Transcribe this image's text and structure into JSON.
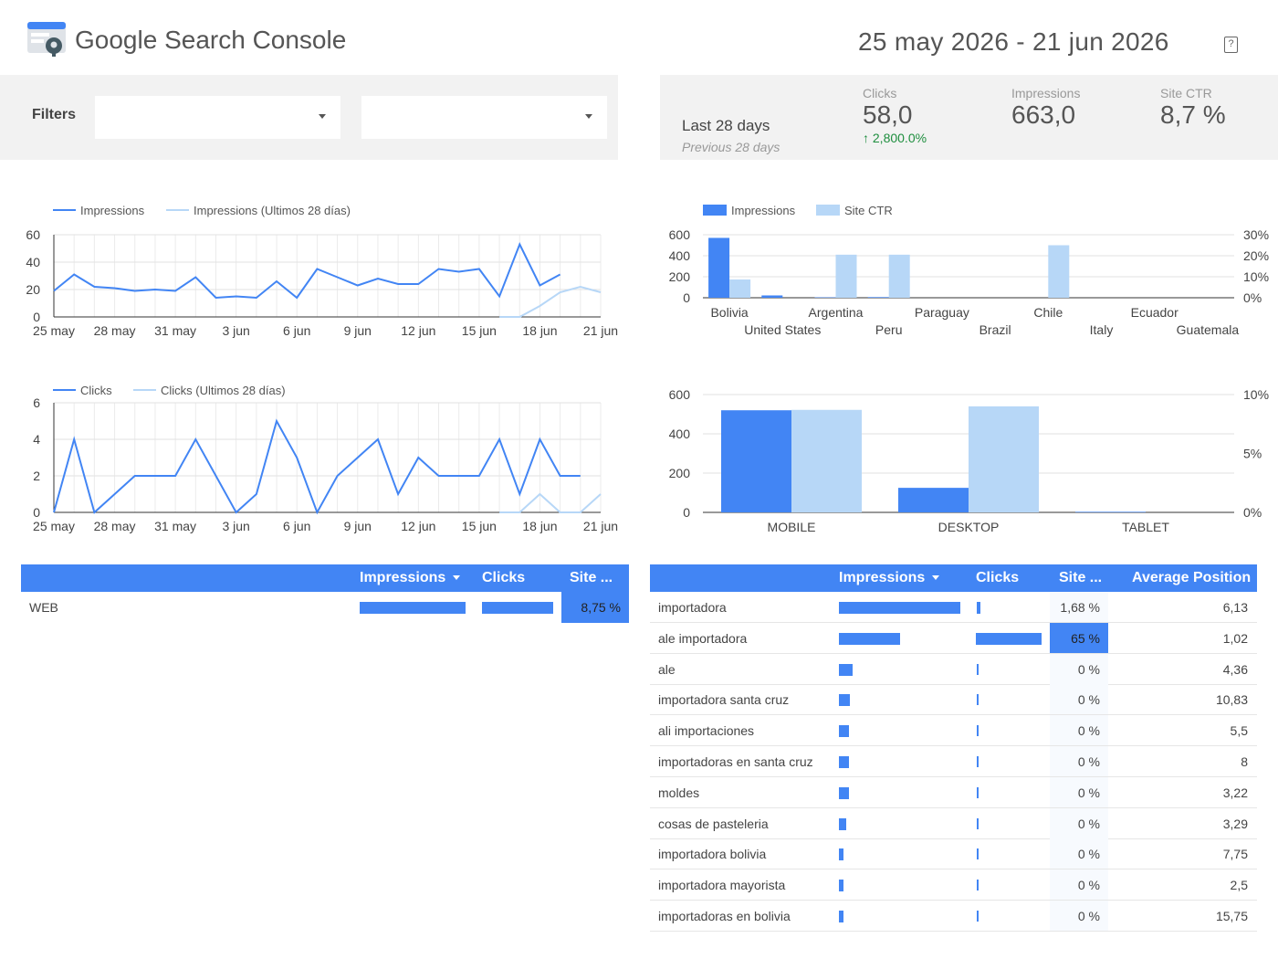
{
  "header": {
    "title": "Google Search Console",
    "date_range": "25 may 2026 - 21 jun 2026",
    "help_glyph": "?"
  },
  "filters": {
    "label": "Filters",
    "dropdown_1_value": "",
    "dropdown_2_value": ""
  },
  "scorecard": {
    "period": "Last 28 days",
    "previous_period": "Previous 28 days",
    "clicks": {
      "label": "Clicks",
      "value": "58,0",
      "delta": "2,800.0%",
      "delta_icon": "arrow-up-icon"
    },
    "impressions": {
      "label": "Impressions",
      "value": "663,0"
    },
    "ctr": {
      "label": "Site CTR",
      "value": "8,7 %"
    }
  },
  "colors": {
    "primary": "#4285f4",
    "secondary": "#b7d7f7",
    "positive": "#1e8e3e"
  },
  "chart_data": [
    {
      "type": "line",
      "legend": [
        "Impressions",
        "Impressions (Ultimos 28 días)"
      ],
      "x_ticks": [
        "25 may",
        "28 may",
        "31 may",
        "3 jun",
        "6 jun",
        "9 jun",
        "12 jun",
        "15 jun",
        "18 jun",
        "21 jun"
      ],
      "ylim": [
        0,
        60
      ],
      "y_ticks": [
        0,
        20,
        40,
        60
      ],
      "series": [
        {
          "name": "Impressions",
          "values": [
            19,
            31,
            22,
            21,
            19,
            20,
            19,
            29,
            14,
            15,
            14,
            26,
            14,
            35,
            29,
            23,
            28,
            24,
            24,
            35,
            33,
            35,
            15,
            53,
            23,
            31,
            null,
            null
          ]
        },
        {
          "name": "Impressions (Ultimos 28 días)",
          "values": [
            null,
            null,
            null,
            null,
            null,
            null,
            null,
            null,
            null,
            null,
            null,
            null,
            null,
            null,
            null,
            null,
            null,
            null,
            null,
            null,
            null,
            null,
            0,
            0,
            8,
            18,
            22,
            18
          ]
        }
      ]
    },
    {
      "type": "bar",
      "legend": [
        "Impressions",
        "Site CTR"
      ],
      "categories": [
        "Bolivia",
        "United States",
        "Argentina",
        "Peru",
        "Paraguay",
        "Brazil",
        "Chile",
        "Italy",
        "Ecuador",
        "Guatemala"
      ],
      "series": [
        {
          "name": "Impressions",
          "values": [
            570,
            22,
            4,
            6,
            0,
            0,
            0,
            0,
            0,
            0
          ]
        },
        {
          "name": "Site CTR",
          "values": [
            8.7,
            0,
            20.5,
            20.5,
            0,
            0,
            25.0,
            0,
            0,
            0
          ]
        }
      ],
      "ylim": [
        0,
        600
      ],
      "y_ticks": [
        0,
        200,
        400,
        600
      ],
      "y2lim": [
        0,
        30
      ],
      "y2_ticks": [
        "0%",
        "10%",
        "20%",
        "30%"
      ]
    },
    {
      "type": "line",
      "legend": [
        "Clicks",
        "Clicks (Ultimos 28 días)"
      ],
      "x_ticks": [
        "25 may",
        "28 may",
        "31 may",
        "3 jun",
        "6 jun",
        "9 jun",
        "12 jun",
        "15 jun",
        "18 jun",
        "21 jun"
      ],
      "ylim": [
        0,
        6
      ],
      "y_ticks": [
        0,
        2,
        4,
        6
      ],
      "series": [
        {
          "name": "Clicks",
          "values": [
            0,
            4,
            0,
            1,
            2,
            2,
            2,
            4,
            2,
            0,
            1,
            5,
            3,
            0,
            2,
            3,
            4,
            1,
            3,
            2,
            2,
            2,
            4,
            1,
            4,
            2,
            2,
            null
          ]
        },
        {
          "name": "Clicks (Ultimos 28 días)",
          "values": [
            null,
            null,
            null,
            null,
            null,
            null,
            null,
            null,
            null,
            null,
            null,
            null,
            null,
            null,
            null,
            null,
            null,
            null,
            null,
            null,
            null,
            null,
            0,
            0,
            1,
            0,
            0,
            1
          ]
        }
      ]
    },
    {
      "type": "bar",
      "categories": [
        "MOBILE",
        "DESKTOP",
        "TABLET"
      ],
      "series": [
        {
          "name": "Impressions",
          "values": [
            520,
            125,
            3
          ]
        },
        {
          "name": "Site CTR",
          "values": [
            8.7,
            9.0,
            0
          ]
        }
      ],
      "ylim": [
        0,
        600
      ],
      "y_ticks": [
        0,
        200,
        400,
        600
      ],
      "y2lim": [
        0,
        10
      ],
      "y2_ticks": [
        "0%",
        "5%",
        "10%"
      ]
    }
  ],
  "table_left": {
    "headers": [
      "Impressions",
      "Clicks",
      "Site ..."
    ],
    "rows": [
      {
        "label": "WEB",
        "impressions_frac": 1.0,
        "clicks_frac": 1.0,
        "ctr": "8,75 %"
      }
    ]
  },
  "table_right": {
    "headers": [
      "Impressions",
      "Clicks",
      "Site ...",
      "Average Position"
    ],
    "rows": [
      {
        "query": "importadora",
        "impressions_frac": 1.0,
        "clicks_frac": 0.05,
        "ctr": "1,68 %",
        "position": "6,13",
        "highlight": false
      },
      {
        "query": "ale importadora",
        "impressions_frac": 0.5,
        "clicks_frac": 1.0,
        "ctr": "65 %",
        "position": "1,02",
        "highlight": true
      },
      {
        "query": "ale",
        "impressions_frac": 0.11,
        "clicks_frac": 0,
        "ctr": "0 %",
        "position": "4,36",
        "highlight": false
      },
      {
        "query": "importadora santa cruz",
        "impressions_frac": 0.09,
        "clicks_frac": 0,
        "ctr": "0 %",
        "position": "10,83",
        "highlight": false
      },
      {
        "query": "ali importaciones",
        "impressions_frac": 0.08,
        "clicks_frac": 0,
        "ctr": "0 %",
        "position": "5,5",
        "highlight": false
      },
      {
        "query": "importadoras en santa cruz",
        "impressions_frac": 0.08,
        "clicks_frac": 0,
        "ctr": "0 %",
        "position": "8",
        "highlight": false
      },
      {
        "query": "moldes",
        "impressions_frac": 0.08,
        "clicks_frac": 0,
        "ctr": "0 %",
        "position": "3,22",
        "highlight": false
      },
      {
        "query": "cosas de pasteleria",
        "impressions_frac": 0.06,
        "clicks_frac": 0,
        "ctr": "0 %",
        "position": "3,29",
        "highlight": false
      },
      {
        "query": "importadora bolivia",
        "impressions_frac": 0.04,
        "clicks_frac": 0,
        "ctr": "0 %",
        "position": "7,75",
        "highlight": false
      },
      {
        "query": "importadora mayorista",
        "impressions_frac": 0.04,
        "clicks_frac": 0,
        "ctr": "0 %",
        "position": "2,5",
        "highlight": false
      },
      {
        "query": "importadoras en bolivia",
        "impressions_frac": 0.04,
        "clicks_frac": 0,
        "ctr": "0 %",
        "position": "15,75",
        "highlight": false
      }
    ]
  }
}
